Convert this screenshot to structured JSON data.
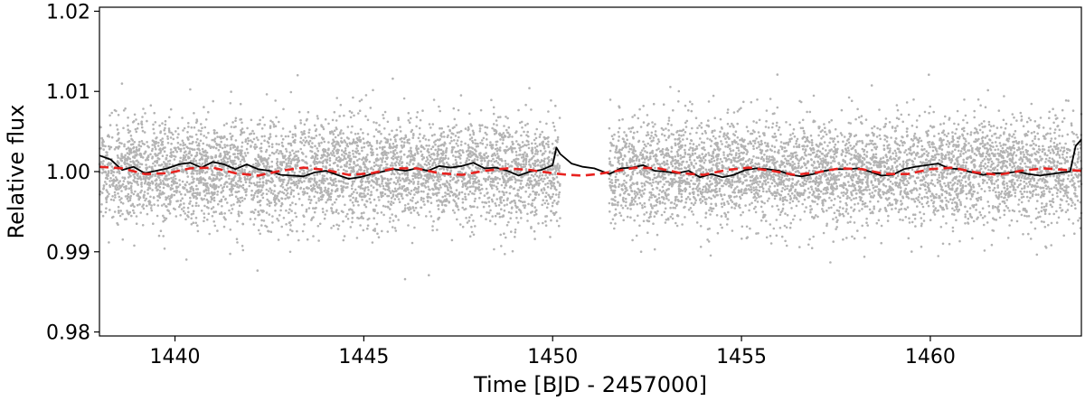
{
  "chart_data": {
    "type": "scatter",
    "title": "",
    "xlabel": "Time [BJD - 2457000]",
    "ylabel": "Relative flux",
    "xlim": [
      1438.0,
      1464.0
    ],
    "ylim": [
      0.9795,
      1.0205
    ],
    "x_ticks": [
      1440,
      1445,
      1450,
      1455,
      1460
    ],
    "x_tick_labels": [
      "1440",
      "1445",
      "1450",
      "1455",
      "1460"
    ],
    "y_ticks": [
      0.98,
      0.99,
      1.0,
      1.01,
      1.02
    ],
    "y_tick_labels": [
      "0.98",
      "0.99",
      "1.00",
      "1.01",
      "1.02"
    ],
    "grid": false,
    "legend": "none",
    "colors": {
      "points": "#b3b3b3",
      "binned": "#000000",
      "model": "#e8221f"
    },
    "series": [
      {
        "kind": "scatter",
        "color": "#b3b3b3",
        "segments": [
          [
            1438.0,
            1450.2
          ],
          [
            1451.5,
            1464.0
          ]
        ],
        "center": 1.0,
        "scatter_std": 0.0032,
        "n_points": 9000
      },
      {
        "kind": "line",
        "color": "#000000",
        "x": [
          1438.0,
          1438.3,
          1438.6,
          1438.9,
          1439.2,
          1439.5,
          1439.8,
          1440.1,
          1440.4,
          1440.7,
          1441.0,
          1441.3,
          1441.6,
          1441.9,
          1442.2,
          1442.5,
          1442.8,
          1443.1,
          1443.4,
          1443.7,
          1444.0,
          1444.3,
          1444.6,
          1444.9,
          1445.2,
          1445.5,
          1445.8,
          1446.1,
          1446.4,
          1446.7,
          1447.0,
          1447.3,
          1447.6,
          1447.9,
          1448.2,
          1448.5,
          1448.8,
          1449.1,
          1449.4,
          1449.7,
          1450.0,
          1450.1,
          1450.2,
          1450.5,
          1450.8,
          1451.1,
          1451.5,
          1451.8,
          1452.1,
          1452.4,
          1452.7,
          1453.0,
          1453.3,
          1453.6,
          1453.9,
          1454.2,
          1454.5,
          1454.8,
          1455.1,
          1455.4,
          1455.7,
          1456.0,
          1456.3,
          1456.6,
          1456.9,
          1457.2,
          1457.5,
          1457.8,
          1458.1,
          1458.4,
          1458.7,
          1459.0,
          1459.3,
          1459.6,
          1459.9,
          1460.2,
          1460.5,
          1460.8,
          1461.1,
          1461.4,
          1461.7,
          1462.0,
          1462.3,
          1462.6,
          1462.9,
          1463.2,
          1463.5,
          1463.7,
          1463.85,
          1464.0
        ],
        "y": [
          1.002,
          1.0015,
          1.0002,
          1.0006,
          0.9998,
          1.0001,
          1.0004,
          1.0009,
          1.0011,
          1.0005,
          1.0012,
          1.0009,
          1.0003,
          1.0009,
          1.0003,
          1.0001,
          0.9996,
          0.9995,
          0.9994,
          0.9999,
          1.0001,
          0.9996,
          0.9991,
          0.9993,
          0.9997,
          1.0,
          1.0003,
          1.0001,
          1.0004,
          1.0001,
          1.0007,
          1.0005,
          1.0007,
          1.0011,
          1.0004,
          1.0005,
          1.0001,
          0.9995,
          1.0,
          1.0002,
          1.0008,
          1.003,
          1.0022,
          1.001,
          1.0006,
          1.0004,
          0.9997,
          1.0004,
          1.0005,
          1.0008,
          1.0001,
          1.0,
          0.9998,
          1.0001,
          0.9993,
          0.9997,
          0.9993,
          0.9996,
          1.0002,
          1.0004,
          1.0003,
          1.0001,
          0.9996,
          0.9994,
          0.9997,
          1.0001,
          1.0003,
          1.0003,
          1.0004,
          1.0,
          0.9995,
          0.9996,
          1.0003,
          1.0006,
          1.0008,
          1.001,
          1.0004,
          1.0003,
          0.9999,
          0.9996,
          0.9998,
          0.9998,
          1.0,
          0.9997,
          0.9995,
          0.9997,
          0.9999,
          1.0,
          1.0032,
          1.004
        ]
      },
      {
        "kind": "dashed-line",
        "color": "#e8221f",
        "x": [
          1438.0,
          1438.6,
          1439.2,
          1439.8,
          1440.4,
          1441.0,
          1441.6,
          1442.2,
          1442.8,
          1443.4,
          1444.0,
          1444.6,
          1445.2,
          1445.8,
          1446.4,
          1447.0,
          1447.6,
          1448.2,
          1448.8,
          1449.4,
          1450.0,
          1450.4,
          1450.8,
          1451.2,
          1451.6,
          1452.2,
          1452.8,
          1453.4,
          1454.0,
          1454.6,
          1455.2,
          1455.8,
          1456.4,
          1457.0,
          1457.6,
          1458.2,
          1458.8,
          1459.4,
          1460.0,
          1460.6,
          1461.2,
          1461.8,
          1462.4,
          1463.0,
          1463.6,
          1464.0
        ],
        "y": [
          1.0006,
          1.0004,
          0.9997,
          0.9998,
          1.0004,
          1.0005,
          0.9998,
          0.9995,
          1.0001,
          1.0005,
          1.0002,
          0.9996,
          0.9998,
          1.0004,
          1.0004,
          0.9998,
          0.9996,
          1.0001,
          1.0004,
          1.0002,
          0.9998,
          0.9996,
          0.9995,
          0.9997,
          1.0,
          1.0005,
          1.0004,
          0.9998,
          0.9996,
          1.0002,
          1.0005,
          1.0001,
          0.9996,
          0.9999,
          1.0004,
          1.0003,
          0.9997,
          0.9997,
          1.0003,
          1.0005,
          0.9999,
          0.9996,
          1.0001,
          1.0004,
          1.0002,
          1.0001
        ]
      }
    ]
  }
}
